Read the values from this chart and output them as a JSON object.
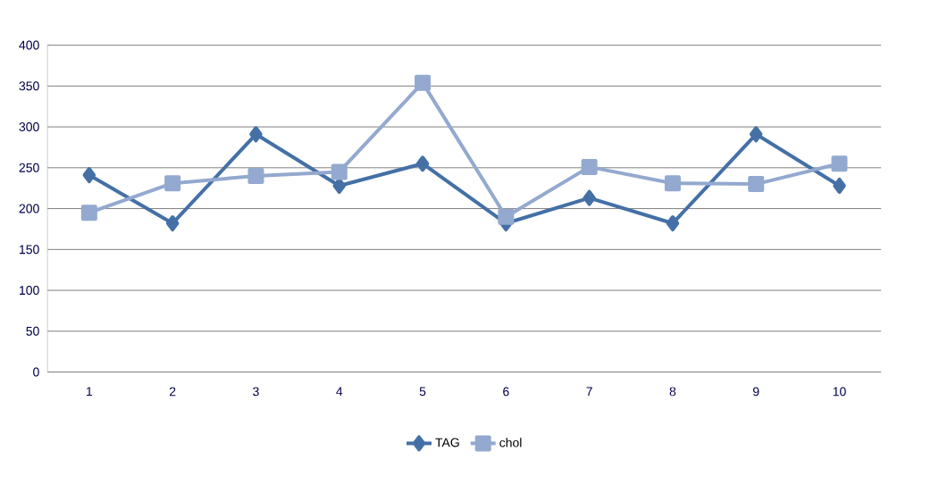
{
  "chart_data": {
    "type": "line",
    "categories": [
      "1",
      "2",
      "3",
      "4",
      "5",
      "6",
      "7",
      "8",
      "9",
      "10"
    ],
    "series": [
      {
        "name": "TAG",
        "color": "#4470a6",
        "marker": "diamond",
        "values": [
          241,
          182,
          291,
          228,
          255,
          182,
          213,
          182,
          291,
          228
        ]
      },
      {
        "name": "chol",
        "color": "#93a9cf",
        "marker": "square",
        "values": [
          195,
          231,
          240,
          245,
          354,
          190,
          251,
          231,
          230,
          255
        ]
      }
    ],
    "ylim": [
      0,
      400
    ],
    "yticks": [
      0,
      50,
      100,
      150,
      200,
      250,
      300,
      350,
      400
    ],
    "grid": "y",
    "legend": "bottom",
    "line_style": "solid"
  }
}
